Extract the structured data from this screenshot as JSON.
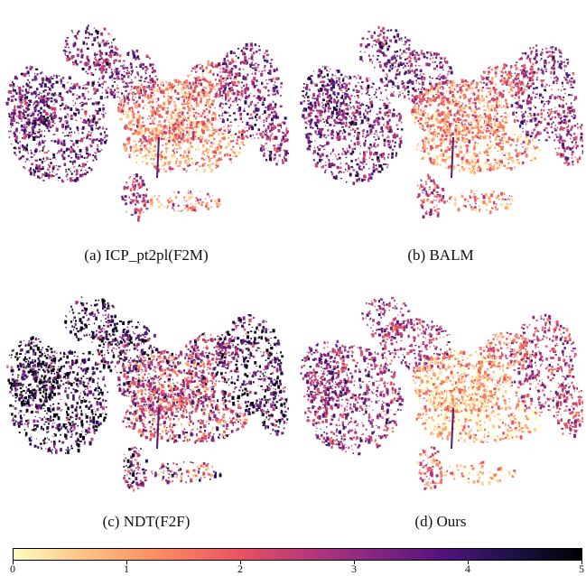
{
  "panels": [
    {
      "id": "a",
      "caption": "(a) ICP_pt2pl(F2M)"
    },
    {
      "id": "b",
      "caption": "(b) BALM"
    },
    {
      "id": "c",
      "caption": "(c) NDT(F2F)"
    },
    {
      "id": "d",
      "caption": "(d) Ours"
    }
  ],
  "colorbar": {
    "colormap": "magma (reversed)",
    "ticks": [
      "0",
      "1",
      "2",
      "3",
      "4",
      "5"
    ],
    "min": 0,
    "max": 5
  }
}
